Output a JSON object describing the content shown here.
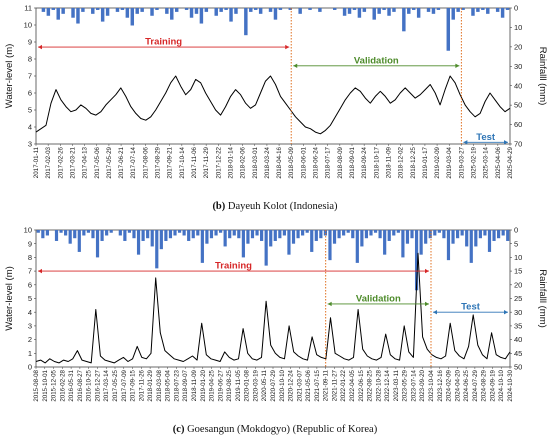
{
  "chart_data": [
    {
      "type": "line",
      "panel_letter": "(b)",
      "caption": "Dayeuh Kolot (Indonesia)",
      "ylabel": "Water-level (m)",
      "y2label": "Rainfalll (mm)",
      "ylim": [
        3,
        11
      ],
      "yticks": [
        3,
        4,
        5,
        6,
        7,
        8,
        9,
        10,
        11
      ],
      "y2lim": [
        0,
        70
      ],
      "y2ticks": [
        0,
        10,
        20,
        30,
        40,
        50,
        60,
        70
      ],
      "y2_inverted": true,
      "x_range": [
        "2017-01-11",
        "2025-05-10"
      ],
      "xticks": [
        "2017-01-11",
        "2017-02-03",
        "2017-02-26",
        "2017-03-21",
        "2017-04-13",
        "2017-05-06",
        "2017-05-29",
        "2017-06-21",
        "2017-07-14",
        "2017-08-06",
        "2017-08-29",
        "2017-09-21",
        "2017-10-14",
        "2017-11-06",
        "2017-11-29",
        "2017-12-22",
        "2018-01-14",
        "2018-02-06",
        "2018-03-01",
        "2018-03-24",
        "2018-04-16",
        "2018-05-09",
        "2018-06-01",
        "2018-06-24",
        "2018-07-17",
        "2018-08-09",
        "2018-09-01",
        "2018-09-24",
        "2018-10-17",
        "2018-11-09",
        "2018-12-02",
        "2018-12-25",
        "2019-01-17",
        "2019-02-09",
        "2019-03-04",
        "2019-03-27",
        "2025-02-19",
        "2025-03-14",
        "2025-04-06",
        "2025-04-29"
      ],
      "split_after_tick": 35,
      "periods": [
        {
          "name": "Training",
          "color": "#d62728",
          "from_tick": 0,
          "to_tick": 21,
          "y": 8.7
        },
        {
          "name": "Validation",
          "color": "#4d8b2a",
          "from_tick": 21,
          "to_tick": 35,
          "y": 7.6
        },
        {
          "name": "Test",
          "color": "#2e75b6",
          "from_tick": 35,
          "to_tick": 39,
          "y": 3.1
        }
      ],
      "boundaries_at_tick": [
        21,
        35
      ],
      "series": [
        {
          "name": "Water-level",
          "axis": "left",
          "color": "#000000",
          "style": "line",
          "values": [
            3.7,
            3.9,
            4.1,
            5.4,
            6.2,
            5.6,
            5.2,
            4.9,
            5.0,
            5.3,
            5.1,
            4.8,
            4.7,
            4.9,
            5.3,
            5.6,
            5.9,
            6.3,
            5.8,
            5.2,
            4.8,
            4.5,
            4.4,
            4.6,
            5.0,
            5.5,
            6.0,
            6.6,
            7.0,
            6.4,
            5.9,
            6.2,
            6.8,
            6.6,
            6.0,
            5.5,
            5.0,
            4.7,
            5.2,
            5.8,
            6.2,
            5.9,
            5.4,
            5.1,
            5.3,
            6.0,
            6.7,
            7.0,
            6.5,
            5.8,
            5.4,
            5.0,
            4.6,
            4.3,
            4.0,
            3.9,
            3.7,
            3.6,
            3.8,
            4.1,
            4.6,
            5.1,
            5.6,
            6.0,
            6.3,
            6.1,
            5.7,
            5.4,
            5.8,
            6.1,
            5.8,
            5.4,
            5.6,
            6.0,
            6.3,
            6.0,
            5.7,
            5.9,
            6.2,
            6.5,
            6.0,
            5.3,
            6.2,
            7.0,
            6.6,
            5.9,
            5.3,
            4.9,
            4.6,
            4.8,
            5.5,
            6.0,
            5.6,
            5.2,
            4.9,
            5.1
          ]
        },
        {
          "name": "Rainfall",
          "axis": "right",
          "color": "#4472c4",
          "style": "bars",
          "values": [
            0,
            2,
            4,
            1,
            6,
            3,
            0,
            5,
            8,
            2,
            0,
            3,
            1,
            7,
            4,
            0,
            2,
            1,
            5,
            9,
            3,
            2,
            0,
            4,
            1,
            0,
            3,
            6,
            2,
            0,
            1,
            5,
            3,
            8,
            2,
            0,
            4,
            2,
            1,
            7,
            3,
            0,
            14,
            2,
            1,
            3,
            0,
            2,
            6,
            1,
            0,
            1,
            0,
            3,
            0,
            1,
            0,
            2,
            0,
            0,
            1,
            0,
            4,
            3,
            1,
            5,
            2,
            0,
            6,
            3,
            1,
            4,
            2,
            0,
            12,
            3,
            1,
            5,
            0,
            2,
            3,
            1,
            0,
            22,
            6,
            2,
            1,
            0,
            4,
            2,
            1,
            3,
            0,
            2,
            5,
            1
          ]
        }
      ]
    },
    {
      "type": "line",
      "panel_letter": "(c)",
      "caption": "Goesangun (Mokdogyo) (Republic of Korea)",
      "ylabel": "Water-level (m)",
      "y2label": "Rainfalll (mm)",
      "ylim": [
        0,
        10
      ],
      "yticks": [
        0,
        1,
        2,
        3,
        4,
        5,
        6,
        7,
        8,
        9,
        10
      ],
      "y2lim": [
        0,
        50
      ],
      "y2ticks": [
        0,
        5,
        10,
        15,
        20,
        25,
        30,
        35,
        40,
        45,
        50
      ],
      "y2_inverted": true,
      "x_range": [
        "2015-08-08",
        "2024-10-30"
      ],
      "xticks": [
        "2015-08-08",
        "2015-10-01",
        "2015-12-05",
        "2016-02-28",
        "2016-05-31",
        "2016-08-27",
        "2016-10-25",
        "2016-12-27",
        "2017-03-14",
        "2017-05-25",
        "2017-07-09",
        "2017-09-15",
        "2017-11-26",
        "2018-01-29",
        "2018-03-08",
        "2018-05-04",
        "2018-07-23",
        "2018-09-07",
        "2018-11-09",
        "2019-01-20",
        "2019-04-25",
        "2019-06-27",
        "2019-08-25",
        "2019-11-05",
        "2020-01-08",
        "2020-03-19",
        "2020-05-11",
        "2020-07-29",
        "2020-10-10",
        "2020-12-24",
        "2021-03-07",
        "2021-05-06",
        "2021-07-15",
        "2021-09-11",
        "2021-11-27",
        "2022-01-22",
        "2022-04-05",
        "2022-06-15",
        "2022-08-25",
        "2022-10-28",
        "2022-12-14",
        "2023-03-11",
        "2023-05-29",
        "2023-07-14",
        "2023-09-20",
        "2023-10-04",
        "2023-12-16",
        "2024-02-09",
        "2024-04-20",
        "2024-06-25",
        "2024-07-29",
        "2024-08-29",
        "2024-09-19",
        "2024-10-10",
        "2024-10-30"
      ],
      "split_after_tick": null,
      "periods": [
        {
          "name": "Training",
          "color": "#d62728",
          "from_tick": 0,
          "to_tick": 45,
          "y": 7.0
        },
        {
          "name": "Validation",
          "color": "#4d8b2a",
          "from_tick": 33,
          "to_tick": 45,
          "y": 4.6
        },
        {
          "name": "Test",
          "color": "#2e75b6",
          "from_tick": 45,
          "to_tick": 54,
          "y": 4.0
        }
      ],
      "boundaries_at_tick": [
        33,
        45
      ],
      "series": [
        {
          "name": "Water-level",
          "axis": "left",
          "color": "#000000",
          "style": "line",
          "values": [
            0.4,
            0.5,
            0.3,
            0.6,
            0.4,
            0.3,
            0.5,
            0.4,
            0.6,
            1.2,
            0.5,
            0.4,
            0.3,
            4.2,
            0.8,
            0.5,
            0.4,
            0.3,
            0.5,
            0.7,
            0.4,
            0.6,
            1.5,
            0.7,
            0.6,
            1.0,
            6.5,
            2.5,
            1.2,
            0.9,
            0.6,
            0.5,
            0.4,
            0.6,
            0.8,
            0.5,
            3.2,
            0.9,
            0.6,
            0.5,
            0.4,
            1.1,
            0.7,
            0.5,
            0.6,
            2.8,
            1.0,
            0.6,
            0.5,
            0.7,
            4.8,
            1.6,
            1.0,
            0.7,
            0.6,
            3.0,
            1.1,
            0.8,
            0.6,
            0.5,
            2.2,
            0.9,
            0.7,
            0.6,
            3.6,
            1.0,
            0.8,
            0.6,
            0.5,
            0.7,
            4.2,
            1.3,
            0.8,
            0.6,
            0.5,
            0.7,
            2.4,
            0.9,
            0.6,
            0.5,
            3.0,
            1.1,
            0.7,
            8.3,
            2.2,
            1.3,
            0.9,
            0.7,
            0.6,
            0.8,
            3.2,
            1.2,
            0.8,
            0.6,
            1.5,
            3.8,
            1.6,
            0.9,
            0.6,
            2.5,
            0.9,
            0.7,
            0.6,
            1.1
          ]
        },
        {
          "name": "Rainfall",
          "axis": "right",
          "color": "#4472c4",
          "style": "bars",
          "values": [
            1,
            3,
            2,
            0,
            4,
            1,
            2,
            5,
            3,
            8,
            2,
            1,
            3,
            10,
            4,
            2,
            1,
            0,
            2,
            4,
            1,
            3,
            9,
            4,
            3,
            6,
            14,
            7,
            4,
            3,
            2,
            1,
            2,
            4,
            3,
            2,
            12,
            5,
            3,
            2,
            1,
            6,
            3,
            2,
            3,
            10,
            5,
            3,
            2,
            4,
            13,
            6,
            4,
            3,
            2,
            9,
            5,
            3,
            2,
            1,
            8,
            4,
            3,
            2,
            11,
            5,
            3,
            2,
            1,
            3,
            12,
            6,
            3,
            2,
            1,
            3,
            9,
            4,
            2,
            1,
            10,
            5,
            3,
            22,
            9,
            5,
            3,
            2,
            1,
            3,
            11,
            5,
            3,
            2,
            6,
            12,
            6,
            3,
            2,
            8,
            4,
            3,
            2,
            4
          ]
        }
      ]
    }
  ]
}
